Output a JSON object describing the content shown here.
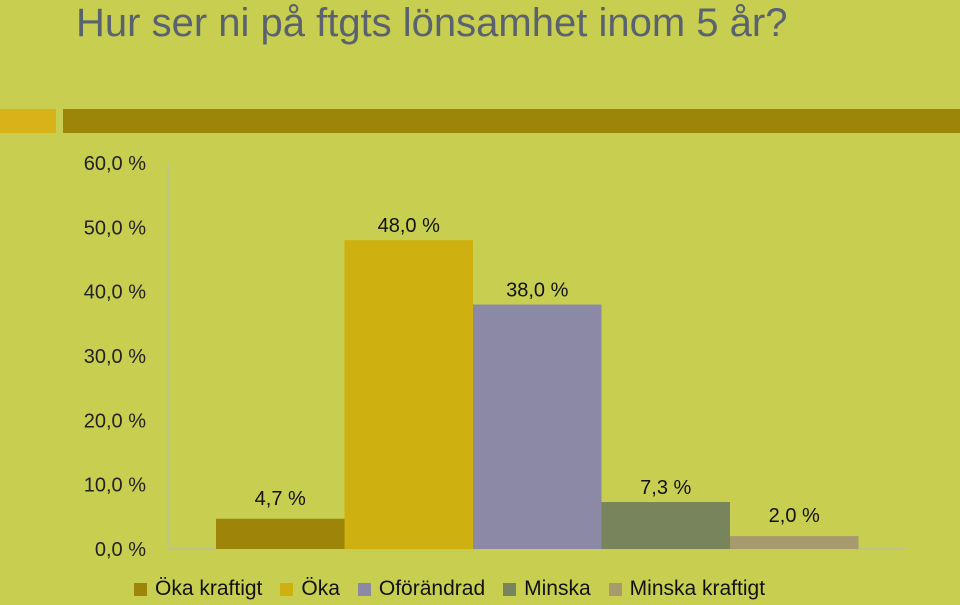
{
  "slide": {
    "title": "Hur ser ni på ftgts lönsamhet inom 5 år?"
  },
  "chart_data": {
    "type": "bar",
    "categories": [
      "Öka kraftigt",
      "Öka",
      "Oförändrad",
      "Minska",
      "Minska kraftigt"
    ],
    "values": [
      4.7,
      48.0,
      38.0,
      7.3,
      2.0
    ],
    "data_labels": [
      "4,7 %",
      "48,0 %",
      "38,0 %",
      "7,3 %",
      "2,0 %"
    ],
    "colors": [
      "#9c8509",
      "#ceb010",
      "#8c89a6",
      "#78855c",
      "#a69a6e"
    ],
    "ylim": [
      0,
      60
    ],
    "yticks": [
      0,
      10,
      20,
      30,
      40,
      50,
      60
    ],
    "ytick_labels": [
      "0,0 %",
      "10,0 %",
      "20,0 %",
      "30,0 %",
      "40,0 %",
      "50,0 %",
      "60,0 %"
    ],
    "grid": false,
    "legend": "bottom"
  }
}
